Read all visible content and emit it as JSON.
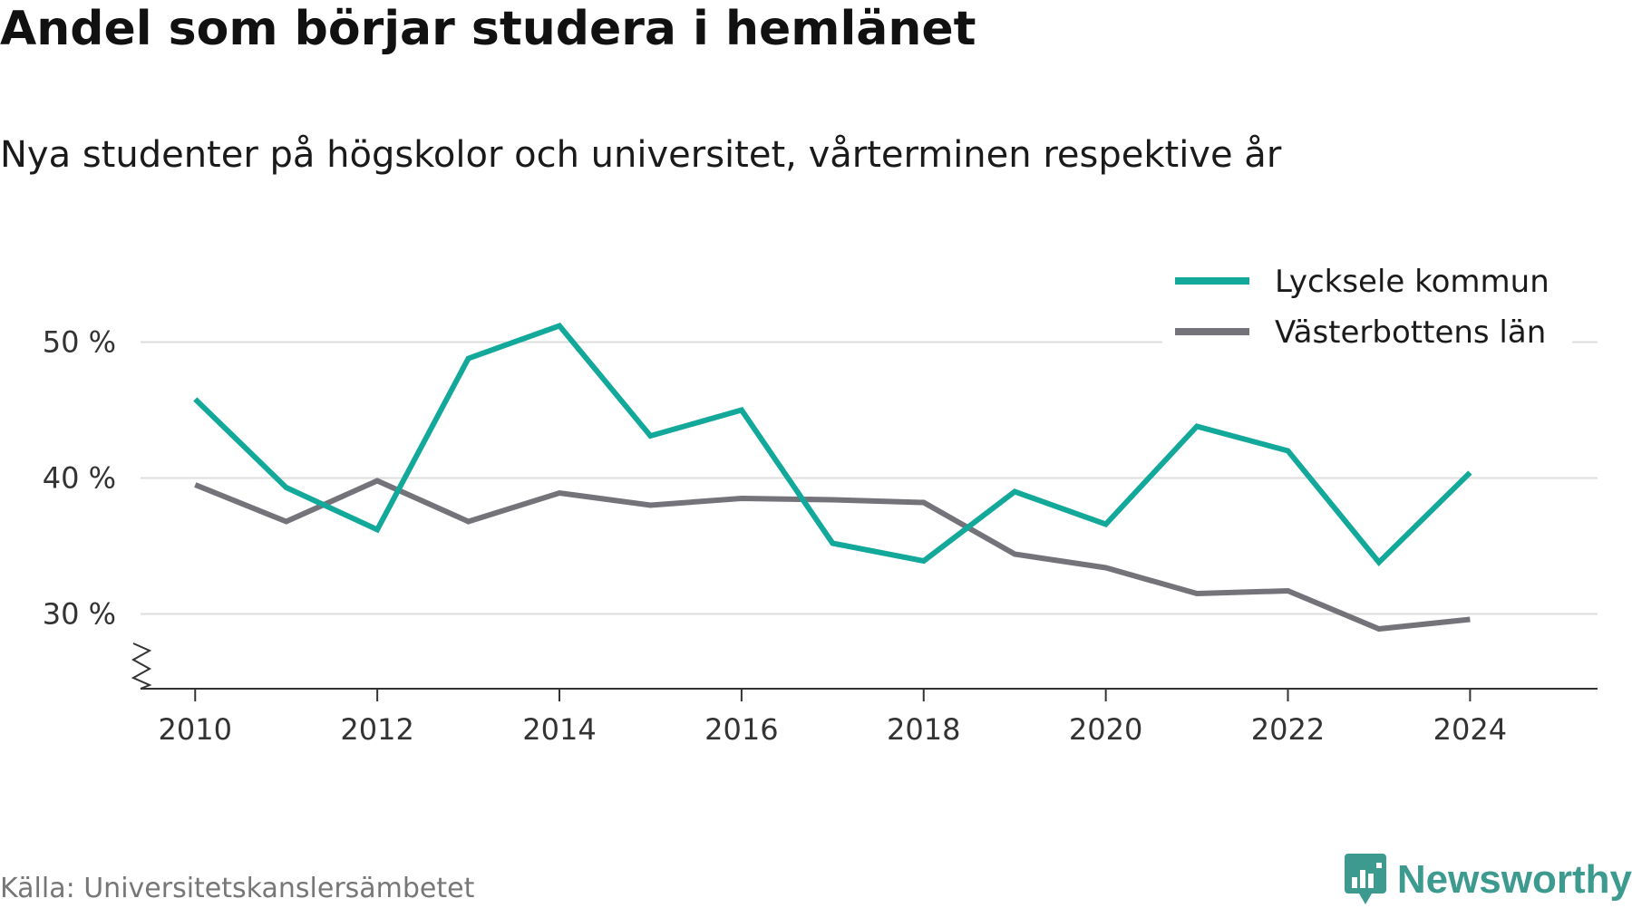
{
  "header": {
    "title": "Andel som börjar studera i hemlänet",
    "subtitle": "Nya studenter på högskolor och universitet, vårterminen respektive år"
  },
  "footer": {
    "source": "Källa: Universitetskanslersämbetet",
    "brand": "Newsworthy"
  },
  "colors": {
    "lycksele": "#12a89a",
    "vasterbotten": "#74737a",
    "grid": "#dddddd",
    "axis": "#333333",
    "brand": "#3d9a8f"
  },
  "icons": {
    "brand": "bar-chart-pin-icon",
    "axis_break": "zigzag-break-icon"
  },
  "chart_data": {
    "type": "line",
    "x": [
      2010,
      2011,
      2012,
      2013,
      2014,
      2015,
      2016,
      2017,
      2018,
      2019,
      2020,
      2021,
      2022,
      2023,
      2024
    ],
    "x_ticks": [
      2010,
      2012,
      2014,
      2016,
      2018,
      2020,
      2022,
      2024
    ],
    "x_tick_labels": [
      "2010",
      "2012",
      "2014",
      "2016",
      "2018",
      "2020",
      "2022",
      "2024"
    ],
    "y_ticks": [
      30,
      40,
      50
    ],
    "y_tick_labels": [
      "30 %",
      "40 %",
      "50 %"
    ],
    "xlim": [
      2009.4,
      2025.4
    ],
    "ylim": [
      24.5,
      52.5
    ],
    "y_axis_break": true,
    "grid": true,
    "legend_position": "top-right",
    "series": [
      {
        "name": "Lycksele kommun",
        "color_key": "lycksele",
        "values": [
          45.8,
          39.3,
          36.2,
          48.8,
          51.2,
          43.1,
          45.0,
          35.2,
          33.9,
          39.0,
          36.6,
          43.8,
          42.0,
          33.8,
          40.4
        ]
      },
      {
        "name": "Västerbottens län",
        "color_key": "vasterbotten",
        "values": [
          39.5,
          36.8,
          39.8,
          36.8,
          38.9,
          38.0,
          38.5,
          38.4,
          38.2,
          34.4,
          33.4,
          31.5,
          31.7,
          28.9,
          29.6
        ]
      }
    ]
  }
}
